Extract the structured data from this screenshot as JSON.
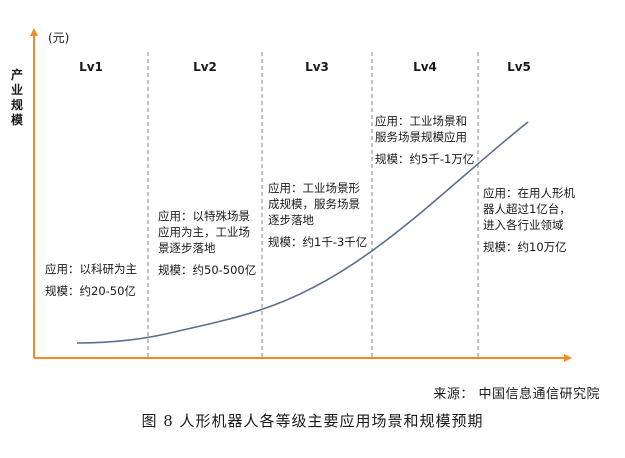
{
  "chart_data": {
    "type": "line",
    "unit": "(元)",
    "ylabel": "产业规模",
    "stages": [
      {
        "label": "Lv1",
        "app_lines": [
          "应用：以科研为主"
        ],
        "scale": "规模：约20-50亿"
      },
      {
        "label": "Lv2",
        "app_lines": [
          "应用：以特殊场景",
          "应用为主，工业场",
          "景逐步落地"
        ],
        "scale": "规模：约50-500亿"
      },
      {
        "label": "Lv3",
        "app_lines": [
          "应用：工业场景形",
          "成规模，服务场景",
          "逐步落地"
        ],
        "scale": "规模：约1千-3千亿"
      },
      {
        "label": "Lv4",
        "app_lines": [
          "应用：工业场景和",
          "服务场景规模应用"
        ],
        "scale": "规模：约5千-1万亿"
      },
      {
        "label": "Lv5",
        "app_lines": [
          "应用：在用人形机",
          "器人超过1亿台，",
          "进入各行业领域"
        ],
        "scale": "规模：约10万亿"
      }
    ]
  },
  "source": "来源：  中国信息通信研究院",
  "caption": "图 8  人形机器人各等级主要应用场景和规模预期"
}
